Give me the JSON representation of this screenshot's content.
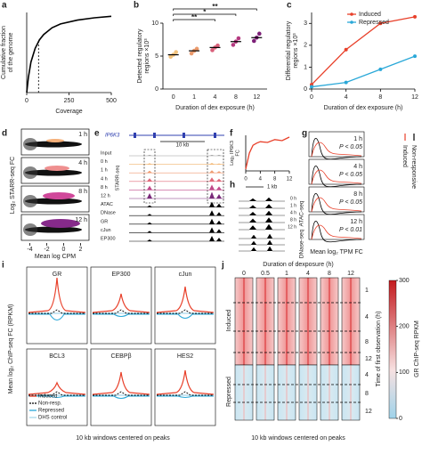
{
  "chart_data": [
    {
      "label": "a",
      "type": "line",
      "x_label": "Coverage",
      "y_label": [
        "Cumulative fraction",
        "of the genome"
      ],
      "x": [
        0,
        10,
        25,
        50,
        75,
        100,
        150,
        200,
        300,
        400,
        500
      ],
      "values": [
        0,
        0.2,
        0.4,
        0.58,
        0.69,
        0.76,
        0.85,
        0.9,
        0.95,
        0.98,
        1.0
      ],
      "color": "#000000",
      "xlim": [
        0,
        500
      ],
      "xticks": [
        0,
        250,
        500
      ],
      "ylim": [
        0,
        1.05
      ],
      "cutoff": 70
    },
    {
      "label": "b",
      "type": "strip",
      "x_label": "Duration of dex exposure (h)",
      "y_label": [
        "Detected regulatory",
        "regions ×10³"
      ],
      "categories": [
        "0",
        "1",
        "4",
        "8",
        "12"
      ],
      "points": [
        [
          4.9,
          5.2,
          5.6
        ],
        [
          5.4,
          5.8,
          6.1
        ],
        [
          5.9,
          6.3,
          6.6
        ],
        [
          6.7,
          7.2,
          7.7
        ],
        [
          7.3,
          7.8,
          8.4
        ]
      ],
      "medians": [
        5.2,
        5.8,
        6.3,
        7.2,
        7.8
      ],
      "colors": [
        "#f2c27c",
        "#eb9a6c",
        "#d9607a",
        "#b53a80",
        "#7d2078"
      ],
      "ylim": [
        0,
        10
      ],
      "yticks": [
        0,
        5,
        10
      ],
      "brackets": [
        {
          "from": "0",
          "to": "12",
          "label": "**"
        },
        {
          "from": "0",
          "to": "8",
          "label": "*"
        },
        {
          "from": "0",
          "to": "4",
          "label": "**"
        }
      ]
    },
    {
      "label": "c",
      "type": "line",
      "x_label": "Duration of dex exposure (h)",
      "y_label": [
        "Differential regulatory",
        "regions ×10³"
      ],
      "x": [
        0,
        4,
        8,
        12
      ],
      "series": [
        {
          "name": "Induced",
          "color": "#e8402a",
          "values": [
            0.2,
            1.8,
            3.0,
            3.3
          ]
        },
        {
          "name": "Repressed",
          "color": "#2aa8d8",
          "values": [
            0.1,
            0.3,
            0.9,
            1.5
          ]
        }
      ],
      "xlim": [
        0,
        12
      ],
      "xticks": [
        0,
        4,
        8,
        12
      ],
      "ylim": [
        0,
        3.5
      ],
      "yticks": [
        0,
        1,
        2,
        3
      ],
      "markers": true
    },
    {
      "label": "f",
      "type": "line",
      "y_label": [
        "Log₂ IP6K3",
        "FC"
      ],
      "x": [
        0,
        1,
        2,
        3,
        4,
        6,
        8,
        10,
        12
      ],
      "values": [
        0.05,
        0.5,
        0.72,
        0.78,
        0.82,
        0.8,
        0.88,
        0.85,
        0.95
      ],
      "color": "#e8402a",
      "xlim": [
        0,
        12
      ],
      "xticks": [
        0,
        4,
        8,
        12
      ],
      "ylim": [
        0,
        1
      ]
    }
  ],
  "panels": {
    "d": {
      "label": "d",
      "y_label": "Log₂ STARR-seq FC",
      "x_label": "Mean log CPM",
      "times": [
        "1 h",
        "4 h",
        "8 h",
        "12 h"
      ],
      "xlim": [
        -5,
        3
      ],
      "xticks": [
        -4,
        -2,
        0,
        2
      ]
    },
    "e": {
      "label": "e",
      "gene": "IP6K3",
      "scale": "10 kb",
      "group": "STARR-seq",
      "tracks": [
        "Input",
        "0 h",
        "1 h",
        "4 h",
        "8 h",
        "12 h",
        "ATAC",
        "DNase",
        "GR",
        "cJun",
        "EP300"
      ]
    },
    "g": {
      "label": "g",
      "x_label": "Mean log₂ TPM FC",
      "legend": [
        "Induced",
        "Non-responsive"
      ],
      "rows": [
        {
          "time": "1 h",
          "p": "P < 0.05"
        },
        {
          "time": "4 h",
          "p": "P < 0.05"
        },
        {
          "time": "8 h",
          "p": "P < 0.05"
        },
        {
          "time": "12 h",
          "p": "P < 0.01"
        }
      ]
    },
    "h": {
      "label": "h",
      "scale": "1 kb",
      "assays": [
        "ATAC-seq",
        "DNase-seq"
      ],
      "times": [
        "0 h",
        "1 h",
        "4 h",
        "8 h",
        "12 h"
      ]
    },
    "i": {
      "label": "i",
      "y_label": "Mean log₂ ChIP-seq FC (RPKM)",
      "x_label": "10 kb windows centered on peaks",
      "factors": [
        "GR",
        "EP300",
        "cJun",
        "BCL3",
        "CEBPβ",
        "HES2"
      ],
      "legend": [
        "Induced",
        "Non-resp.",
        "Repressed",
        "DHS control"
      ]
    },
    "j": {
      "label": "j",
      "title": "Duration of dexposure (h)",
      "columns": [
        "0",
        "0.5",
        "1",
        "4",
        "8",
        "12"
      ],
      "groups": [
        "Induced",
        "Repressed"
      ],
      "time_label": "Time of first observation (h)",
      "time_ticks": [
        1,
        4,
        8,
        12
      ],
      "colorbar_label": "GR ChIP-seq RPKM",
      "colorbar_lim": [
        0,
        300
      ],
      "colorbar_ticks": [
        0,
        100,
        200,
        300
      ],
      "x_label": "10 kb windows centered on peaks"
    }
  }
}
